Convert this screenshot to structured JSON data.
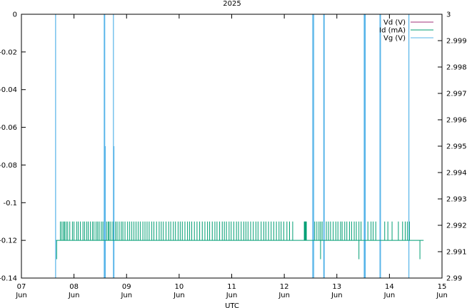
{
  "chart_data": {
    "type": "line",
    "title": "2025",
    "xlabel": "UTC",
    "ylabel": "",
    "y2label": "",
    "x_ticks": [
      {
        "day": 7,
        "l1": "07",
        "l2": "Jun"
      },
      {
        "day": 8,
        "l1": "08",
        "l2": "Jun"
      },
      {
        "day": 9,
        "l1": "09",
        "l2": "Jun"
      },
      {
        "day": 10,
        "l1": "10",
        "l2": "Jun"
      },
      {
        "day": 11,
        "l1": "11",
        "l2": "Jun"
      },
      {
        "day": 12,
        "l1": "12",
        "l2": "Jun"
      },
      {
        "day": 13,
        "l1": "13",
        "l2": "Jun"
      },
      {
        "day": 14,
        "l1": "14",
        "l2": "Jun"
      },
      {
        "day": 15,
        "l1": "15",
        "l2": "Jun"
      }
    ],
    "xlim": [
      "2025-06-07",
      "2025-06-15"
    ],
    "ylim": [
      -0.14,
      0
    ],
    "y_ticks": [
      "0",
      "-0.02",
      "-0.04",
      "-0.06",
      "-0.08",
      "-0.1",
      "-0.12",
      "-0.14"
    ],
    "y2lim": [
      2.99,
      3
    ],
    "y2_ticks": [
      "3",
      "2.999",
      "2.998",
      "2.997",
      "2.996",
      "2.995",
      "2.994",
      "2.993",
      "2.992",
      "2.991",
      "2.99"
    ],
    "legend_position": "top-right",
    "legend": [
      "Vd (V)",
      "Id (mA)",
      "Vg (V)"
    ],
    "series": [
      {
        "name": "Vd (V)",
        "color": "#a0307a",
        "axis": "y",
        "points": []
      },
      {
        "name": "Id (mA)",
        "color": "#009e73",
        "axis": "y",
        "baseline": -0.12,
        "spike_level": -0.11,
        "drop_level": -0.13,
        "range_days": [
          7.66,
          14.65
        ],
        "spike_days": [
          7.74,
          7.77,
          7.8,
          7.82,
          7.85,
          7.88,
          7.92,
          7.97,
          8.0,
          8.05,
          8.08,
          8.12,
          8.17,
          8.2,
          8.24,
          8.27,
          8.31,
          8.35,
          8.38,
          8.42,
          8.45,
          8.48,
          8.52,
          8.55,
          8.62,
          8.65,
          8.67,
          8.7,
          8.74,
          8.79,
          8.82,
          8.86,
          8.9,
          8.93,
          8.97,
          9.02,
          9.06,
          9.1,
          9.14,
          9.18,
          9.22,
          9.26,
          9.31,
          9.35,
          9.39,
          9.43,
          9.48,
          9.52,
          9.57,
          9.62,
          9.66,
          9.7,
          9.75,
          9.8,
          9.84,
          9.89,
          9.93,
          9.98,
          10.02,
          10.06,
          10.11,
          10.16,
          10.2,
          10.24,
          10.29,
          10.34,
          10.39,
          10.44,
          10.49,
          10.54,
          10.58,
          10.63,
          10.68,
          10.72,
          10.77,
          10.82,
          10.86,
          10.9,
          10.95,
          10.99,
          11.04,
          11.09,
          11.13,
          11.18,
          11.23,
          11.27,
          11.31,
          11.36,
          11.41,
          11.46,
          11.5,
          11.56,
          11.61,
          11.65,
          11.7,
          11.75,
          11.8,
          11.85,
          11.9,
          11.94,
          11.99,
          12.05,
          12.1,
          12.16,
          12.38,
          12.39,
          12.4,
          12.41,
          12.42,
          12.58,
          12.62,
          12.66,
          12.69,
          12.72,
          12.8,
          12.84,
          12.88,
          12.93,
          12.98,
          13.02,
          13.07,
          13.1,
          13.15,
          13.19,
          13.24,
          13.28,
          13.33,
          13.37,
          13.42,
          13.46,
          13.59,
          13.65,
          13.69,
          13.74,
          13.91,
          13.97,
          14.05,
          14.17,
          14.25,
          14.3,
          14.34,
          14.38
        ],
        "drop_days": [
          7.67,
          12.69,
          13.42,
          14.58
        ]
      },
      {
        "name": "Vg (V)",
        "color": "#56b4e9",
        "axis": "y2",
        "spike_level": 2.99,
        "pulses": [
          {
            "day": 7.65,
            "top": 3
          },
          {
            "day": 8.575,
            "top": 3
          },
          {
            "day": 8.585,
            "top": 3
          },
          {
            "day": 8.595,
            "top": 2.995
          },
          {
            "day": 8.75,
            "top": 3
          },
          {
            "day": 8.76,
            "top": 2.995
          },
          {
            "day": 12.54,
            "top": 3
          },
          {
            "day": 12.56,
            "top": 3
          },
          {
            "day": 12.75,
            "top": 3
          },
          {
            "day": 12.76,
            "top": 3
          },
          {
            "day": 13.52,
            "top": 3
          },
          {
            "day": 13.53,
            "top": 3
          },
          {
            "day": 13.54,
            "top": 3
          },
          {
            "day": 13.82,
            "top": 3
          },
          {
            "day": 13.83,
            "top": 3
          },
          {
            "day": 14.37,
            "top": 3
          }
        ]
      }
    ],
    "grid": false
  }
}
